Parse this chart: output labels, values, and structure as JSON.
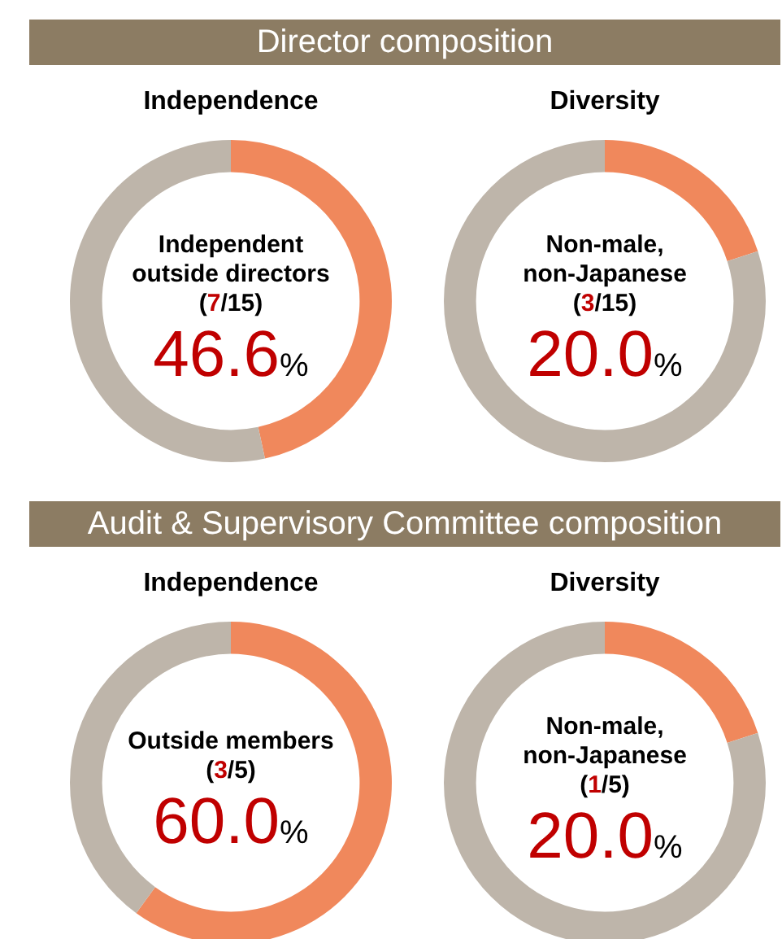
{
  "chart_data": [
    {
      "type": "other",
      "title": "Director composition"
    },
    {
      "type": "donut",
      "title": "Independence",
      "categories": [
        null,
        null
      ],
      "values": [
        46.6,
        53.4
      ],
      "colors": [
        "#f0885c",
        "#beb5aa"
      ],
      "annotations": [
        "Independent outside directors",
        "(7/15)",
        "46.6%"
      ]
    },
    {
      "type": "donut",
      "title": "Diversity",
      "categories": [
        null,
        null
      ],
      "values": [
        20.0,
        80.0
      ],
      "colors": [
        "#f0885c",
        "#beb5aa"
      ],
      "annotations": [
        "Non-male, non-Japanese",
        "(3/15)",
        "20.0%"
      ]
    },
    {
      "type": "other",
      "title": "Audit & Supervisory Committee composition"
    },
    {
      "type": "donut",
      "title": "Independence",
      "categories": [
        null,
        null
      ],
      "values": [
        60.0,
        40.0
      ],
      "colors": [
        "#f0885c",
        "#beb5aa"
      ],
      "annotations": [
        "Outside members",
        "(3/5)",
        "60.0%"
      ]
    },
    {
      "type": "donut",
      "title": "Diversity",
      "categories": [
        null,
        null
      ],
      "values": [
        20.0,
        80.0
      ],
      "colors": [
        "#f0885c",
        "#beb5aa"
      ],
      "annotations": [
        "Non-male, non-Japanese",
        "(1/5)",
        "20.0%"
      ]
    }
  ]
}
